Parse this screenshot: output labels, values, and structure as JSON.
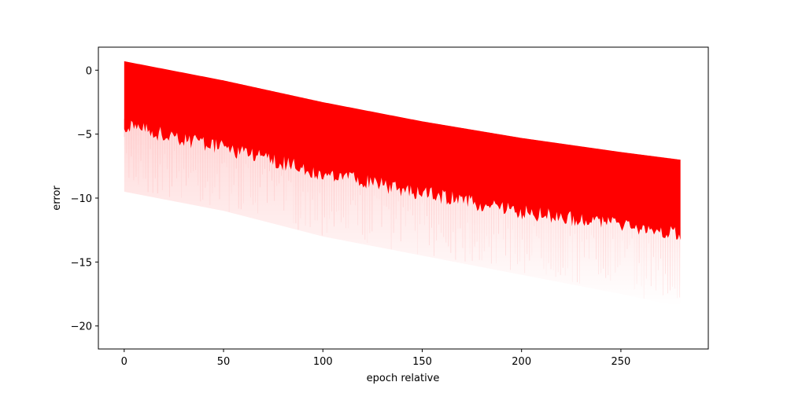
{
  "chart_data": {
    "type": "area",
    "title": "",
    "xlabel": "epoch relative",
    "ylabel": "error",
    "xlim": [
      -13,
      294
    ],
    "ylim": [
      -21.8,
      1.8
    ],
    "xticks": [
      0,
      50,
      100,
      150,
      200,
      250
    ],
    "yticks": [
      0,
      -5,
      -10,
      -15,
      -20
    ],
    "xtick_labels": [
      "0",
      "50",
      "100",
      "150",
      "200",
      "250"
    ],
    "ytick_labels": [
      "0",
      "−5",
      "−10",
      "−15",
      "−20"
    ],
    "grid": false,
    "legend": "none",
    "series": [
      {
        "color": "#ff0000",
        "x": [
          0,
          50,
          100,
          150,
          200,
          250,
          280
        ],
        "dense_upper": [
          0.7,
          -0.8,
          -2.5,
          -4.0,
          -5.3,
          -6.4,
          -7.0
        ],
        "dense_lower": [
          -3.8,
          -5.5,
          -7.5,
          -9.0,
          -10.5,
          -11.5,
          -12.3
        ],
        "sparse_lower": [
          -9.5,
          -11.0,
          -13.0,
          -14.5,
          -16.0,
          -17.5,
          -18.5
        ]
      }
    ]
  }
}
